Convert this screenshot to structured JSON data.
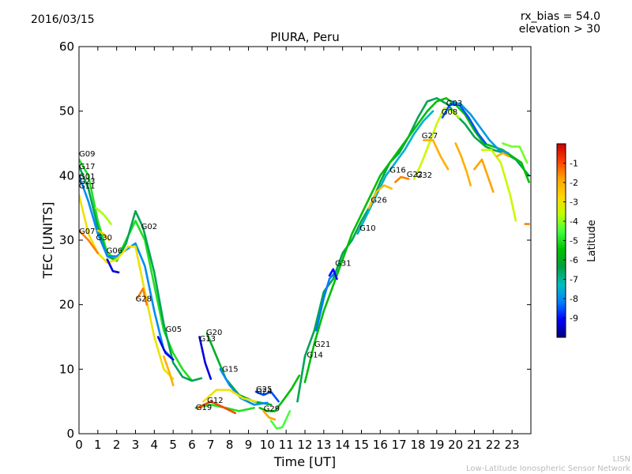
{
  "header": {
    "date": "2016/03/15",
    "rx_bias": "rx_bias = 54.0",
    "elevation": "elevation > 30"
  },
  "footer": {
    "line1": "LISN",
    "line2": "Low-Latitude Ionospheric Sensor Network"
  },
  "colorbar": {
    "label": "Latitude",
    "ticks": [
      "-1",
      "-2",
      "-3",
      "-4",
      "-5",
      "-6",
      "-7",
      "-8",
      "-9"
    ],
    "range": [
      -10,
      0
    ],
    "colormap": [
      "#00007f",
      "#0000ff",
      "#007fff",
      "#00bfbf",
      "#00a040",
      "#00c000",
      "#40ff40",
      "#bfff00",
      "#ffd700",
      "#ffa500",
      "#ff4000",
      "#cc0000"
    ]
  },
  "chart_data": {
    "type": "line",
    "title": "PIURA, Peru",
    "xlabel": "Time [UT]",
    "ylabel": "TEC [UNITS]",
    "xlim": [
      0,
      24
    ],
    "ylim": [
      0,
      60
    ],
    "xticks": [
      0,
      1,
      2,
      3,
      4,
      5,
      6,
      7,
      8,
      9,
      10,
      11,
      12,
      13,
      14,
      15,
      16,
      17,
      18,
      19,
      20,
      21,
      22,
      23
    ],
    "yticks": [
      0,
      10,
      20,
      30,
      40,
      50,
      60
    ],
    "grid": false,
    "satellite_labels": [
      {
        "name": "G09",
        "x": 0.0,
        "y": 43.0
      },
      {
        "name": "G17",
        "x": 0.0,
        "y": 41.0
      },
      {
        "name": "G01",
        "x": 0.0,
        "y": 39.5
      },
      {
        "name": "G23",
        "x": 0.0,
        "y": 38.7
      },
      {
        "name": "G11",
        "x": 0.0,
        "y": 38.0
      },
      {
        "name": "G07",
        "x": 0.0,
        "y": 31.0
      },
      {
        "name": "G30",
        "x": 0.9,
        "y": 30.0
      },
      {
        "name": "G06",
        "x": 1.45,
        "y": 28.0
      },
      {
        "name": "G02",
        "x": 3.3,
        "y": 31.7
      },
      {
        "name": "G28",
        "x": 3.0,
        "y": 20.5
      },
      {
        "name": "G05",
        "x": 4.6,
        "y": 15.8
      },
      {
        "name": "G20",
        "x": 6.75,
        "y": 15.3
      },
      {
        "name": "G13",
        "x": 6.4,
        "y": 14.3
      },
      {
        "name": "G15",
        "x": 7.6,
        "y": 9.6
      },
      {
        "name": "G12",
        "x": 6.8,
        "y": 4.8
      },
      {
        "name": "G19",
        "x": 6.2,
        "y": 3.7
      },
      {
        "name": "G25",
        "x": 9.4,
        "y": 6.5
      },
      {
        "name": "G24",
        "x": 9.4,
        "y": 6.2
      },
      {
        "name": "G29",
        "x": 9.8,
        "y": 3.5
      },
      {
        "name": "G21",
        "x": 12.5,
        "y": 13.5
      },
      {
        "name": "G14",
        "x": 12.1,
        "y": 11.8
      },
      {
        "name": "G31",
        "x": 13.6,
        "y": 26.0
      },
      {
        "name": "G10",
        "x": 14.9,
        "y": 31.5
      },
      {
        "name": "G26",
        "x": 15.5,
        "y": 35.8
      },
      {
        "name": "G16",
        "x": 16.5,
        "y": 40.5
      },
      {
        "name": "G22",
        "x": 17.4,
        "y": 39.8
      },
      {
        "name": "G32",
        "x": 17.9,
        "y": 39.7
      },
      {
        "name": "G27",
        "x": 18.2,
        "y": 45.8
      },
      {
        "name": "G03",
        "x": 19.5,
        "y": 50.8
      },
      {
        "name": "G08",
        "x": 19.25,
        "y": 49.5
      }
    ],
    "series": [
      {
        "lat": -5.0,
        "points": [
          [
            0,
            42.5
          ],
          [
            0.5,
            40
          ],
          [
            1,
            33
          ],
          [
            1.5,
            28
          ],
          [
            2,
            27
          ],
          [
            2.5,
            30
          ],
          [
            3,
            33
          ],
          [
            3.5,
            30
          ],
          [
            4,
            23
          ],
          [
            4.5,
            16
          ],
          [
            5,
            12.5
          ],
          [
            5.5,
            10
          ],
          [
            6,
            8.2
          ]
        ]
      },
      {
        "lat": -6.5,
        "points": [
          [
            0,
            41.5
          ],
          [
            0.5,
            38
          ],
          [
            1,
            32
          ],
          [
            1.5,
            27.5
          ],
          [
            2,
            26.8
          ],
          [
            2.5,
            29.5
          ],
          [
            3,
            34.5
          ],
          [
            3.4,
            32
          ],
          [
            4,
            25
          ],
          [
            4.5,
            17
          ],
          [
            5,
            11
          ],
          [
            5.5,
            8.8
          ],
          [
            6,
            8.2
          ],
          [
            6.5,
            8.6
          ]
        ]
      },
      {
        "lat": -8.0,
        "points": [
          [
            0,
            40
          ],
          [
            0.5,
            36
          ],
          [
            1,
            31
          ],
          [
            1.5,
            27.5
          ],
          [
            2,
            27.5
          ],
          [
            2.5,
            28.5
          ],
          [
            3,
            29.5
          ],
          [
            3.5,
            26
          ],
          [
            4,
            19
          ],
          [
            4.5,
            13
          ],
          [
            5,
            11.5
          ]
        ]
      },
      {
        "lat": -3.0,
        "points": [
          [
            0,
            37
          ],
          [
            0.5,
            31
          ],
          [
            1,
            28
          ],
          [
            1.5,
            26.5
          ],
          [
            2,
            27
          ],
          [
            2.6,
            29
          ],
          [
            3,
            29
          ],
          [
            3.5,
            22
          ],
          [
            4,
            15
          ],
          [
            4.5,
            10
          ],
          [
            5,
            8.5
          ]
        ]
      },
      {
        "lat": -3.8,
        "points": [
          [
            0.9,
            35
          ],
          [
            1.3,
            34
          ],
          [
            1.7,
            32.5
          ]
        ]
      },
      {
        "lat": -1.5,
        "points": [
          [
            0,
            31.5
          ],
          [
            0.5,
            30
          ],
          [
            1,
            28
          ]
        ]
      },
      {
        "lat": -2.5,
        "points": [
          [
            1,
            31.5
          ],
          [
            1.3,
            31
          ],
          [
            1.6,
            30
          ]
        ]
      },
      {
        "lat": -9.3,
        "points": [
          [
            1.5,
            27
          ],
          [
            1.8,
            25.2
          ],
          [
            2.1,
            25
          ]
        ]
      },
      {
        "lat": -1.5,
        "points": [
          [
            3.1,
            21
          ],
          [
            3.4,
            22.5
          ],
          [
            3.6,
            20
          ]
        ]
      },
      {
        "lat": -9.3,
        "points": [
          [
            4.2,
            15
          ],
          [
            4.6,
            12.5
          ],
          [
            5.0,
            11.5
          ]
        ]
      },
      {
        "lat": -2.0,
        "points": [
          [
            4.5,
            12
          ],
          [
            4.8,
            9.5
          ],
          [
            5.0,
            7.5
          ]
        ]
      },
      {
        "lat": -9.3,
        "points": [
          [
            6.4,
            15
          ],
          [
            6.7,
            11
          ],
          [
            7.0,
            8.5
          ]
        ]
      },
      {
        "lat": -6.0,
        "points": [
          [
            6.8,
            15.5
          ],
          [
            7.3,
            12
          ],
          [
            7.8,
            8.5
          ],
          [
            8.5,
            6
          ],
          [
            9.3,
            5
          ],
          [
            10.2,
            4.5
          ]
        ]
      },
      {
        "lat": -8.0,
        "points": [
          [
            7.5,
            10
          ],
          [
            8,
            7.5
          ],
          [
            8.6,
            5.5
          ],
          [
            9.3,
            4.5
          ],
          [
            10,
            4.8
          ]
        ]
      },
      {
        "lat": -3.0,
        "points": [
          [
            6.6,
            5
          ],
          [
            7.3,
            6.8
          ],
          [
            8,
            6.8
          ],
          [
            8.7,
            5.5
          ],
          [
            9.4,
            5
          ]
        ]
      },
      {
        "lat": -5.0,
        "points": [
          [
            6.2,
            4
          ],
          [
            7,
            4.5
          ],
          [
            7.8,
            4
          ],
          [
            8.5,
            3.5
          ],
          [
            9.3,
            4
          ]
        ]
      },
      {
        "lat": -1.0,
        "points": [
          [
            6.3,
            4
          ],
          [
            7.0,
            5
          ],
          [
            7.6,
            4.2
          ],
          [
            8.3,
            3.2
          ]
        ]
      },
      {
        "lat": -8.5,
        "points": [
          [
            9.4,
            6.5
          ],
          [
            9.8,
            6
          ],
          [
            10.2,
            6.5
          ],
          [
            10.6,
            5
          ]
        ]
      },
      {
        "lat": -5.5,
        "points": [
          [
            9.6,
            4
          ],
          [
            10,
            3.5
          ],
          [
            10.4,
            3.5
          ],
          [
            10.8,
            5
          ],
          [
            11.3,
            7
          ],
          [
            11.7,
            9
          ]
        ]
      },
      {
        "lat": -4.5,
        "points": [
          [
            10.2,
            2
          ],
          [
            10.5,
            0.8
          ],
          [
            10.8,
            1
          ],
          [
            11.2,
            3.5
          ]
        ]
      },
      {
        "lat": -1.8,
        "points": [
          [
            9.8,
            3.5
          ],
          [
            10.1,
            2.5
          ],
          [
            10.4,
            2.2
          ]
        ]
      },
      {
        "lat": -6.5,
        "points": [
          [
            11.6,
            5
          ],
          [
            12,
            12
          ],
          [
            12.5,
            16
          ],
          [
            13,
            22
          ],
          [
            13.5,
            24
          ],
          [
            14,
            28
          ],
          [
            14.5,
            30
          ],
          [
            15,
            33
          ],
          [
            15.5,
            35.5
          ],
          [
            16,
            39
          ],
          [
            16.5,
            42
          ],
          [
            17,
            43.5
          ],
          [
            17.5,
            46
          ],
          [
            18,
            49
          ],
          [
            18.5,
            51.5
          ],
          [
            19,
            52
          ],
          [
            19.6,
            51
          ],
          [
            20,
            49.5
          ],
          [
            20.5,
            48
          ],
          [
            21,
            46
          ],
          [
            21.6,
            44.5
          ],
          [
            22,
            44
          ],
          [
            22.6,
            43.5
          ],
          [
            23.2,
            42.5
          ],
          [
            23.9,
            40
          ]
        ]
      },
      {
        "lat": -5.5,
        "points": [
          [
            12,
            8
          ],
          [
            12.5,
            14
          ],
          [
            13,
            19
          ],
          [
            13.5,
            23
          ],
          [
            14,
            27
          ],
          [
            14.5,
            31
          ],
          [
            15,
            34
          ],
          [
            15.5,
            37
          ],
          [
            16,
            40
          ],
          [
            16.5,
            42
          ],
          [
            17,
            44
          ],
          [
            17.5,
            46
          ],
          [
            18,
            48
          ],
          [
            18.5,
            50
          ],
          [
            19,
            51.5
          ],
          [
            19.5,
            52
          ],
          [
            20,
            51
          ],
          [
            20.5,
            49.5
          ],
          [
            21,
            47
          ],
          [
            21.5,
            45
          ],
          [
            22,
            44.5
          ],
          [
            22.5,
            44
          ],
          [
            23,
            43
          ],
          [
            23.5,
            42
          ],
          [
            23.9,
            39
          ]
        ]
      },
      {
        "lat": -8.2,
        "points": [
          [
            12.6,
            16
          ],
          [
            13,
            21
          ],
          [
            13.3,
            24
          ],
          [
            13.6,
            25
          ]
        ]
      },
      {
        "lat": -9.0,
        "points": [
          [
            13.3,
            24.5
          ],
          [
            13.5,
            25.5
          ],
          [
            13.7,
            24
          ]
        ]
      },
      {
        "lat": -7.5,
        "points": [
          [
            14.8,
            31
          ],
          [
            15.3,
            34
          ],
          [
            15.8,
            37
          ],
          [
            16.3,
            40
          ],
          [
            16.8,
            42
          ],
          [
            17.3,
            44
          ],
          [
            17.8,
            46.5
          ],
          [
            18.3,
            48.5
          ],
          [
            18.8,
            50
          ]
        ]
      },
      {
        "lat": -2.2,
        "points": [
          [
            15.4,
            35
          ],
          [
            15.8,
            37.5
          ],
          [
            16.2,
            38.5
          ],
          [
            16.6,
            38
          ]
        ]
      },
      {
        "lat": -1.5,
        "points": [
          [
            16.8,
            39
          ],
          [
            17.1,
            39.8
          ],
          [
            17.5,
            39.5
          ]
        ]
      },
      {
        "lat": -3.5,
        "points": [
          [
            17.8,
            39.5
          ],
          [
            18.2,
            42
          ],
          [
            18.6,
            45
          ],
          [
            19,
            48
          ],
          [
            19.4,
            50.5
          ],
          [
            19.8,
            50
          ],
          [
            20.2,
            49
          ]
        ]
      },
      {
        "lat": -2.0,
        "points": [
          [
            18.3,
            45.5
          ],
          [
            18.8,
            45.5
          ],
          [
            19.2,
            43
          ],
          [
            19.6,
            41
          ]
        ]
      },
      {
        "lat": -8.5,
        "points": [
          [
            19.3,
            49
          ],
          [
            19.7,
            51
          ],
          [
            20.2,
            51
          ],
          [
            20.7,
            49
          ],
          [
            21.2,
            46.5
          ],
          [
            21.6,
            45
          ]
        ]
      },
      {
        "lat": -7.8,
        "points": [
          [
            19.8,
            51.5
          ],
          [
            20.3,
            51
          ],
          [
            20.8,
            49.5
          ],
          [
            21.3,
            47.5
          ],
          [
            21.8,
            45.5
          ],
          [
            22.3,
            44
          ],
          [
            22.8,
            43.5
          ]
        ]
      },
      {
        "lat": -2.0,
        "points": [
          [
            20,
            45
          ],
          [
            20.3,
            43
          ],
          [
            20.6,
            40.5
          ],
          [
            20.8,
            38.5
          ]
        ]
      },
      {
        "lat": -1.8,
        "points": [
          [
            21.0,
            41
          ],
          [
            21.4,
            42.5
          ],
          [
            21.7,
            40
          ],
          [
            22.0,
            37.5
          ]
        ]
      },
      {
        "lat": -3.5,
        "points": [
          [
            21.4,
            44
          ],
          [
            21.9,
            44
          ],
          [
            22.4,
            42
          ],
          [
            22.9,
            37
          ],
          [
            23.2,
            33
          ]
        ]
      },
      {
        "lat": -4.2,
        "points": [
          [
            22.5,
            45
          ],
          [
            23,
            44.5
          ],
          [
            23.4,
            44.5
          ],
          [
            23.8,
            42
          ]
        ]
      },
      {
        "lat": -2.0,
        "points": [
          [
            22.2,
            43
          ],
          [
            22.5,
            43.5
          ],
          [
            22.8,
            43
          ]
        ]
      },
      {
        "lat": -1.5,
        "points": [
          [
            23.7,
            32.5
          ],
          [
            23.9,
            32.5
          ]
        ]
      }
    ]
  }
}
